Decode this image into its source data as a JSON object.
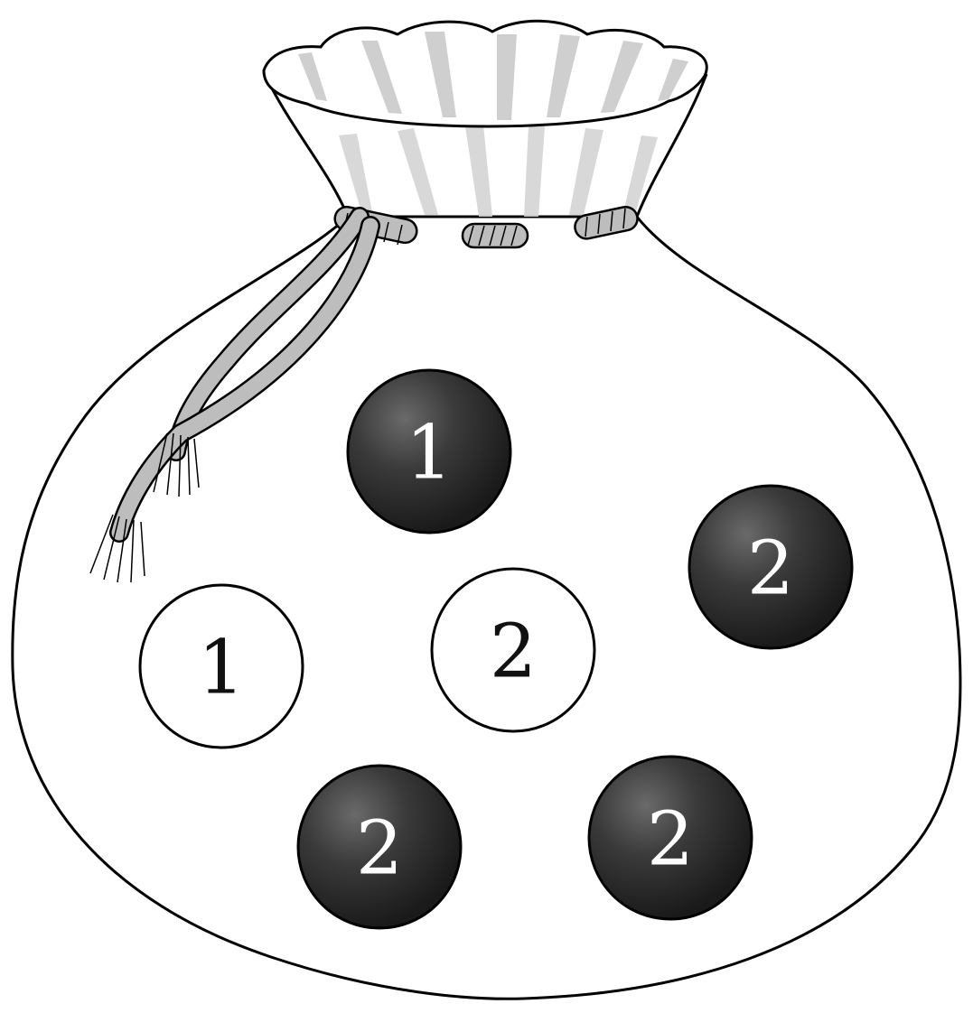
{
  "balls": [
    {
      "label": "1",
      "color": "black"
    },
    {
      "label": "2",
      "color": "black"
    },
    {
      "label": "1",
      "color": "white"
    },
    {
      "label": "2",
      "color": "white"
    },
    {
      "label": "2",
      "color": "black"
    },
    {
      "label": "2",
      "color": "black"
    }
  ],
  "colors": {
    "outline": "#000000",
    "black_ball": "#2a2a2a",
    "black_ball_highlight": "#6a6a6a",
    "white_ball": "#ffffff",
    "rope": "#bdbdbd",
    "fold_shade": "#cfcfcf"
  }
}
